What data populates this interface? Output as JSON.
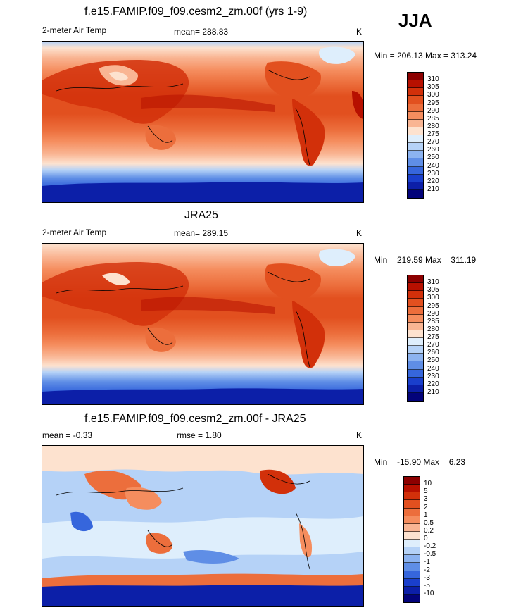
{
  "season": "JJA",
  "panels": [
    {
      "title": "f.e15.FAMIP.f09_f09.cesm2_zm.00f (yrs 1-9)",
      "left_label": "2-meter Air Temp",
      "center_label": "mean= 288.83",
      "unit": "K",
      "minmax": "Min = 206.13 Max = 313.24",
      "colorbar": {
        "labels": [
          "310",
          "305",
          "300",
          "295",
          "290",
          "285",
          "280",
          "275",
          "270",
          "260",
          "250",
          "240",
          "230",
          "220",
          "210"
        ],
        "colors": [
          "#8c0000",
          "#b71000",
          "#d2300a",
          "#e2501f",
          "#ec6e3c",
          "#f58d5e",
          "#f9b593",
          "#fde2cf",
          "#deeefc",
          "#b5d2f7",
          "#8cb3f0",
          "#5f8ee6",
          "#3666dc",
          "#1a3fcc",
          "#0c1fa8",
          "#03037a"
        ]
      }
    },
    {
      "title": "JRA25",
      "left_label": "2-meter Air Temp",
      "center_label": "mean= 289.15",
      "unit": "K",
      "minmax": "Min = 219.59 Max = 311.19",
      "colorbar": {
        "labels": [
          "310",
          "305",
          "300",
          "295",
          "290",
          "285",
          "280",
          "275",
          "270",
          "260",
          "250",
          "240",
          "230",
          "220",
          "210"
        ],
        "colors": [
          "#8c0000",
          "#b71000",
          "#d2300a",
          "#e2501f",
          "#ec6e3c",
          "#f58d5e",
          "#f9b593",
          "#fde2cf",
          "#deeefc",
          "#b5d2f7",
          "#8cb3f0",
          "#5f8ee6",
          "#3666dc",
          "#1a3fcc",
          "#0c1fa8",
          "#03037a"
        ]
      }
    },
    {
      "title": "f.e15.FAMIP.f09_f09.cesm2_zm.00f - JRA25",
      "left_label": "mean =  -0.33",
      "center_label": "rmse =   1.80",
      "unit": "K",
      "minmax": "Min = -15.90 Max =   6.23",
      "colorbar": {
        "labels": [
          "10",
          "5",
          "3",
          "2",
          "1",
          "0.5",
          "0.2",
          "0",
          "-0.2",
          "-0.5",
          "-1",
          "-2",
          "-3",
          "-5",
          "-10"
        ],
        "colors": [
          "#8c0000",
          "#b71000",
          "#d2300a",
          "#e2501f",
          "#ec6e3c",
          "#f58d5e",
          "#f9b593",
          "#fde2cf",
          "#deeefc",
          "#b5d2f7",
          "#8cb3f0",
          "#5f8ee6",
          "#3666dc",
          "#1a3fcc",
          "#0c1fa8",
          "#03037a"
        ]
      }
    }
  ],
  "palette": {
    "deep_red": "#b71000",
    "red": "#d2300a",
    "orange": "#ec6e3c",
    "salmon": "#f58d5e",
    "peach": "#f9b593",
    "cream": "#fde2cf",
    "pale_blue": "#deeefc",
    "light_blue": "#b5d2f7",
    "blue": "#5f8ee6",
    "deep_blue": "#1a3fcc",
    "navy": "#0c1fa8"
  }
}
